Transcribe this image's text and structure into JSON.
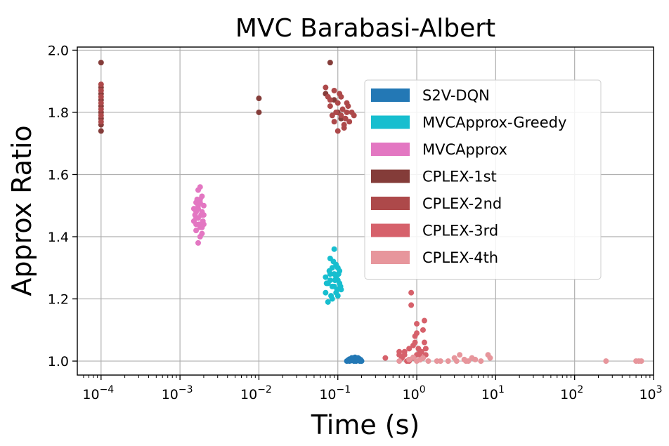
{
  "chart_data": {
    "type": "scatter",
    "title": "MVC Barabasi-Albert",
    "xlabel": "Time (s)",
    "ylabel": "Approx Ratio",
    "xscale": "log",
    "xlim": [
      5e-05,
      1000
    ],
    "ylim": [
      0.955,
      2.01
    ],
    "grid": true,
    "legend_position": "upper-right",
    "x_ticks": [
      {
        "value": 0.0001,
        "base": "10",
        "exp": "−4"
      },
      {
        "value": 0.001,
        "base": "10",
        "exp": "−3"
      },
      {
        "value": 0.01,
        "base": "10",
        "exp": "−2"
      },
      {
        "value": 0.1,
        "base": "10",
        "exp": "−1"
      },
      {
        "value": 1,
        "base": "10",
        "exp": "0"
      },
      {
        "value": 10,
        "base": "10",
        "exp": "1"
      },
      {
        "value": 100,
        "base": "10",
        "exp": "2"
      },
      {
        "value": 1000,
        "base": "10",
        "exp": "3"
      }
    ],
    "y_ticks": [
      {
        "value": 1.0,
        "label": "1.0"
      },
      {
        "value": 1.2,
        "label": "1.2"
      },
      {
        "value": 1.4,
        "label": "1.4"
      },
      {
        "value": 1.6,
        "label": "1.6"
      },
      {
        "value": 1.8,
        "label": "1.8"
      },
      {
        "value": 2.0,
        "label": "2.0"
      }
    ],
    "series": [
      {
        "name": "S2V-DQN",
        "color": "#2378b5",
        "points": [
          [
            0.13,
            1.0
          ],
          [
            0.14,
            1.0
          ],
          [
            0.15,
            1.01
          ],
          [
            0.16,
            1.0
          ],
          [
            0.17,
            1.0
          ],
          [
            0.18,
            1.01
          ],
          [
            0.19,
            1.0
          ],
          [
            0.2,
            1.0
          ],
          [
            0.15,
            1.005
          ],
          [
            0.165,
            1.012
          ],
          [
            0.175,
            1.003
          ],
          [
            0.185,
            1.008
          ],
          [
            0.14,
            1.006
          ],
          [
            0.155,
            1.002
          ],
          [
            0.195,
            1.004
          ],
          [
            0.16,
            1.01
          ],
          [
            0.145,
            1.001
          ],
          [
            0.17,
            1.007
          ],
          [
            0.18,
            1.002
          ],
          [
            0.135,
            1.003
          ]
        ]
      },
      {
        "name": "MVCApprox-Greedy",
        "color": "#17becf",
        "points": [
          [
            0.07,
            1.22
          ],
          [
            0.075,
            1.25
          ],
          [
            0.08,
            1.28
          ],
          [
            0.085,
            1.3
          ],
          [
            0.09,
            1.24
          ],
          [
            0.095,
            1.27
          ],
          [
            0.1,
            1.26
          ],
          [
            0.105,
            1.29
          ],
          [
            0.11,
            1.23
          ],
          [
            0.08,
            1.33
          ],
          [
            0.09,
            1.36
          ],
          [
            0.085,
            1.2
          ],
          [
            0.1,
            1.21
          ],
          [
            0.075,
            1.19
          ],
          [
            0.07,
            1.27
          ],
          [
            0.095,
            1.31
          ],
          [
            0.105,
            1.25
          ],
          [
            0.09,
            1.28
          ],
          [
            0.08,
            1.26
          ],
          [
            0.1,
            1.3
          ],
          [
            0.085,
            1.24
          ],
          [
            0.095,
            1.22
          ],
          [
            0.078,
            1.29
          ],
          [
            0.088,
            1.32
          ],
          [
            0.098,
            1.23
          ],
          [
            0.072,
            1.25
          ],
          [
            0.082,
            1.21
          ],
          [
            0.092,
            1.26
          ],
          [
            0.102,
            1.28
          ],
          [
            0.108,
            1.24
          ]
        ]
      },
      {
        "name": "MVCApprox",
        "color": "#e377c2",
        "points": [
          [
            0.0015,
            1.45
          ],
          [
            0.0016,
            1.48
          ],
          [
            0.0017,
            1.5
          ],
          [
            0.0018,
            1.52
          ],
          [
            0.0019,
            1.47
          ],
          [
            0.002,
            1.44
          ],
          [
            0.0016,
            1.42
          ],
          [
            0.0017,
            1.55
          ],
          [
            0.0018,
            1.4
          ],
          [
            0.0019,
            1.53
          ],
          [
            0.0015,
            1.49
          ],
          [
            0.0017,
            1.46
          ],
          [
            0.0018,
            1.43
          ],
          [
            0.0016,
            1.51
          ],
          [
            0.0019,
            1.41
          ],
          [
            0.002,
            1.5
          ],
          [
            0.0017,
            1.38
          ],
          [
            0.0018,
            1.56
          ],
          [
            0.0016,
            1.46
          ],
          [
            0.0019,
            1.48
          ],
          [
            0.00175,
            1.44
          ],
          [
            0.00165,
            1.52
          ],
          [
            0.00185,
            1.47
          ],
          [
            0.00155,
            1.47
          ],
          [
            0.00195,
            1.45
          ],
          [
            0.0017,
            1.49
          ],
          [
            0.0018,
            1.51
          ],
          [
            0.0016,
            1.44
          ],
          [
            0.0019,
            1.43
          ],
          [
            0.002,
            1.47
          ]
        ]
      },
      {
        "name": "CPLEX-1st",
        "color": "#843c39",
        "points": [
          [
            0.0001,
            1.76
          ],
          [
            0.0001,
            1.78
          ],
          [
            0.0001,
            1.8
          ],
          [
            0.0001,
            1.82
          ],
          [
            0.0001,
            1.84
          ],
          [
            0.0001,
            1.86
          ],
          [
            0.0001,
            1.88
          ],
          [
            0.0001,
            1.74
          ],
          [
            0.0001,
            1.96
          ],
          [
            0.01,
            1.8
          ],
          [
            0.01,
            1.845
          ],
          [
            0.07,
            1.86
          ],
          [
            0.08,
            1.96
          ],
          [
            0.09,
            1.84
          ],
          [
            0.1,
            1.8
          ],
          [
            0.11,
            1.78
          ]
        ]
      },
      {
        "name": "CPLEX-2nd",
        "color": "#ad494a",
        "points": [
          [
            0.0001,
            1.77
          ],
          [
            0.0001,
            1.79
          ],
          [
            0.0001,
            1.81
          ],
          [
            0.0001,
            1.83
          ],
          [
            0.0001,
            1.85
          ],
          [
            0.0001,
            1.87
          ],
          [
            0.0001,
            1.89
          ],
          [
            0.07,
            1.88
          ],
          [
            0.075,
            1.85
          ],
          [
            0.08,
            1.82
          ],
          [
            0.085,
            1.79
          ],
          [
            0.09,
            1.77
          ],
          [
            0.095,
            1.8
          ],
          [
            0.1,
            1.83
          ],
          [
            0.105,
            1.86
          ],
          [
            0.11,
            1.79
          ],
          [
            0.115,
            1.81
          ],
          [
            0.12,
            1.76
          ],
          [
            0.125,
            1.78
          ],
          [
            0.13,
            1.8
          ],
          [
            0.135,
            1.82
          ],
          [
            0.14,
            1.77
          ],
          [
            0.15,
            1.8
          ],
          [
            0.16,
            1.79
          ],
          [
            0.1,
            1.74
          ],
          [
            0.12,
            1.75
          ],
          [
            0.09,
            1.87
          ],
          [
            0.08,
            1.84
          ],
          [
            0.11,
            1.85
          ],
          [
            0.13,
            1.83
          ]
        ]
      },
      {
        "name": "CPLEX-3rd",
        "color": "#d6616b",
        "points": [
          [
            0.4,
            1.01
          ],
          [
            0.6,
            1.02
          ],
          [
            0.7,
            1.03
          ],
          [
            0.8,
            1.04
          ],
          [
            0.9,
            1.05
          ],
          [
            1.0,
            1.02
          ],
          [
            1.1,
            1.03
          ],
          [
            1.2,
            1.01
          ],
          [
            1.3,
            1.04
          ],
          [
            0.85,
            1.22
          ],
          [
            0.85,
            1.18
          ],
          [
            1.0,
            1.12
          ],
          [
            1.0,
            1.09
          ],
          [
            1.25,
            1.13
          ],
          [
            1.2,
            1.1
          ],
          [
            1.25,
            1.06
          ],
          [
            0.75,
            1.0
          ],
          [
            0.95,
            1.06
          ],
          [
            1.05,
            1.04
          ],
          [
            0.65,
            1.01
          ],
          [
            0.95,
            1.08
          ],
          [
            1.15,
            1.03
          ],
          [
            0.7,
            1.02
          ],
          [
            0.9,
            1.01
          ],
          [
            1.1,
            1.02
          ],
          [
            0.8,
            1.0
          ],
          [
            1.3,
            1.02
          ],
          [
            0.6,
            1.03
          ]
        ]
      },
      {
        "name": "CPLEX-4th",
        "color": "#e7969c",
        "points": [
          [
            0.6,
            1.0
          ],
          [
            0.8,
            1.005
          ],
          [
            1.0,
            1.0
          ],
          [
            1.2,
            1.01
          ],
          [
            1.4,
            1.0
          ],
          [
            1.8,
            1.0
          ],
          [
            2.5,
            1.0
          ],
          [
            3.0,
            1.01
          ],
          [
            3.5,
            1.02
          ],
          [
            4.0,
            1.005
          ],
          [
            4.5,
            1.0
          ],
          [
            5.0,
            1.01
          ],
          [
            6.5,
            1.0
          ],
          [
            8.0,
            1.02
          ],
          [
            8.5,
            1.01
          ],
          [
            250,
            1.0
          ],
          [
            600,
            1.0
          ],
          [
            650,
            1.0
          ],
          [
            700,
            1.0
          ],
          [
            0.9,
            1.012
          ],
          [
            2.0,
            1.0
          ],
          [
            3.2,
            1.0
          ],
          [
            4.2,
            1.0
          ],
          [
            5.5,
            1.005
          ],
          [
            1.1,
            1.004
          ]
        ]
      }
    ]
  }
}
